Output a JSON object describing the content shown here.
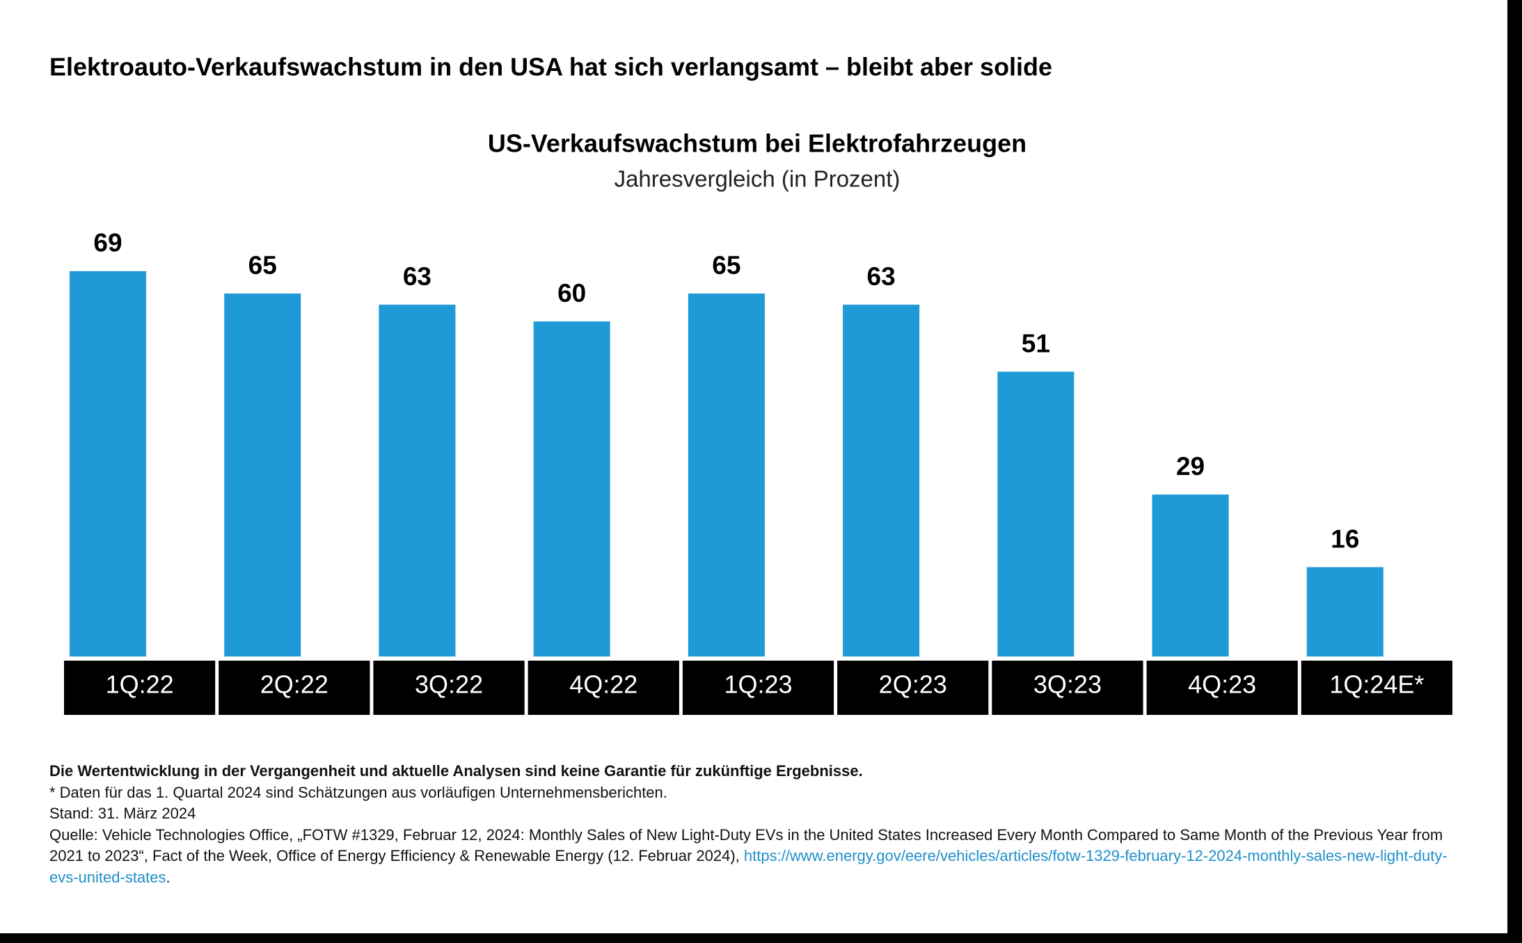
{
  "header": {
    "title": "Elektroauto-Verkaufswachstum in den USA hat sich verlangsamt – bleibt aber solide"
  },
  "chart_data": {
    "type": "bar",
    "title": "US-Verkaufswachstum bei Elektrofahrzeugen",
    "subtitle": "Jahresvergleich (in Prozent)",
    "categories": [
      "1Q:22",
      "2Q:22",
      "3Q:22",
      "4Q:22",
      "1Q:23",
      "2Q:23",
      "3Q:23",
      "4Q:23",
      "1Q:24E*"
    ],
    "values": [
      69,
      65,
      63,
      60,
      65,
      63,
      51,
      29,
      16
    ],
    "color": "#1f9ad6"
  },
  "notes": {
    "disclaimer": "Die Wertentwicklung in der Vergangenheit und aktuelle Analysen sind keine Garantie für zukünftige Ergebnisse.",
    "estimate": "* Daten für das 1. Quartal 2024 sind Schätzungen aus vorläufigen Unternehmensberichten.",
    "date": "Stand: 31. März 2024",
    "source": "Quelle: Vehicle Technologies Office, „FOTW #1329, Februar 12, 2024: Monthly Sales of New Light-Duty EVs in the United States Increased Every Month Compared to Same Month of the Previous Year from 2021 to 2023“, Fact of the Week, Office of Energy Efficiency & Renewable Energy (12. Februar 2024), ",
    "link": "https://www.energy.gov/eere/vehicles/articles/fotw-1329-february-12-2024-monthly-sales-new-light-duty-evs-united-states",
    "end": "."
  }
}
